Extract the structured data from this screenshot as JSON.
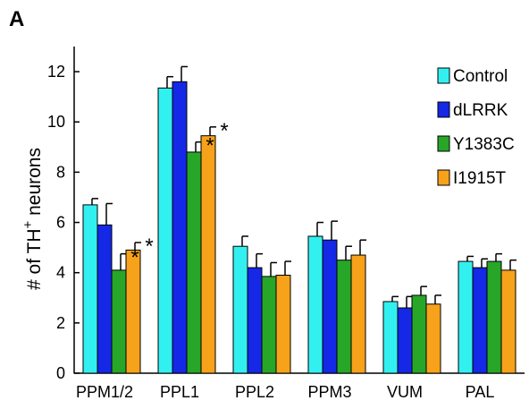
{
  "panel_label": "A",
  "chart_data": {
    "type": "bar",
    "ylabel_prefix": "# of TH",
    "ylabel_superscript": "+",
    "ylabel_suffix": " neurons",
    "ylim": [
      0,
      13
    ],
    "yticks": [
      0,
      2,
      4,
      6,
      8,
      10,
      12
    ],
    "categories": [
      "PPM1/2",
      "PPL1",
      "PPL2",
      "PPM3",
      "VUM",
      "PAL"
    ],
    "legend_position": "top-right",
    "series": [
      {
        "name": "Control",
        "color": "#33f0f0",
        "values": [
          6.7,
          11.35,
          5.05,
          5.45,
          2.85,
          4.45
        ],
        "errors": [
          0.25,
          0.45,
          0.4,
          0.55,
          0.2,
          0.2
        ]
      },
      {
        "name": "dLRRK",
        "color": "#1428e6",
        "values": [
          5.9,
          11.6,
          4.2,
          5.3,
          2.6,
          4.2
        ],
        "errors": [
          0.85,
          0.6,
          0.55,
          0.75,
          0.45,
          0.35
        ]
      },
      {
        "name": "Y1383C",
        "color": "#27a628",
        "values": [
          4.1,
          8.8,
          3.85,
          4.5,
          3.1,
          4.45
        ],
        "errors": [
          0.65,
          0.4,
          0.55,
          0.55,
          0.35,
          0.3
        ]
      },
      {
        "name": "I1915T",
        "color": "#f7a21b",
        "values": [
          4.9,
          9.45,
          3.9,
          4.7,
          2.75,
          4.1
        ],
        "errors": [
          0.3,
          0.35,
          0.55,
          0.6,
          0.35,
          0.4
        ]
      }
    ],
    "annotations": [
      {
        "text": "*",
        "category": "PPM1/2",
        "series": "Y1383C"
      },
      {
        "text": "*",
        "category": "PPM1/2",
        "series": "I1915T"
      },
      {
        "text": "*",
        "category": "PPL1",
        "series": "Y1383C"
      },
      {
        "text": "*",
        "category": "PPL1",
        "series": "I1915T"
      }
    ]
  }
}
